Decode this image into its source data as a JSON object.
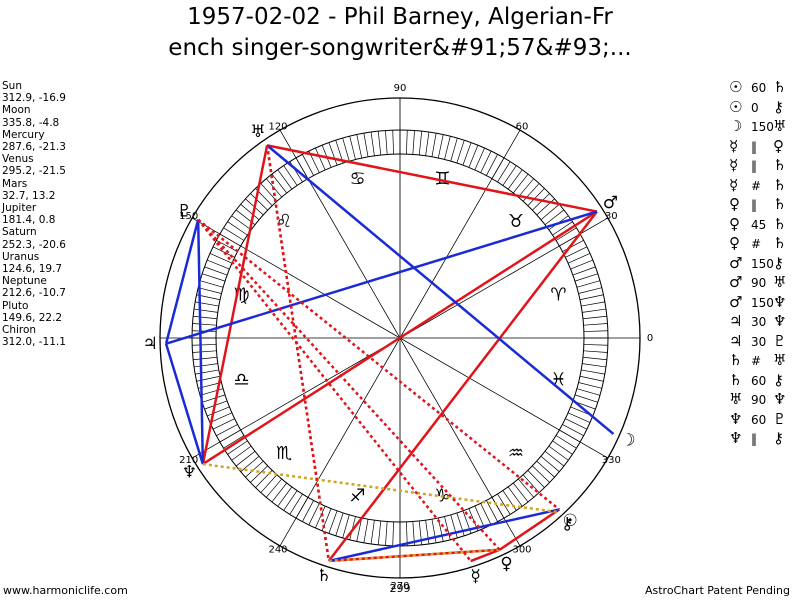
{
  "title": {
    "line1": "1957-02-02 - Phil Barney, Algerian-Fr",
    "line2": "ench singer-songwriter&#91;57&#93;..."
  },
  "planets": [
    {
      "name": "Sun",
      "coords": "312.9, -16.9"
    },
    {
      "name": "Moon",
      "coords": "335.8, -4.8"
    },
    {
      "name": "Mercury",
      "coords": "287.6, -21.3"
    },
    {
      "name": "Venus",
      "coords": "295.2, -21.5"
    },
    {
      "name": "Mars",
      "coords": "32.7, 13.2"
    },
    {
      "name": "Jupiter",
      "coords": "181.4, 0.8"
    },
    {
      "name": "Saturn",
      "coords": "252.3, -20.6"
    },
    {
      "name": "Uranus",
      "coords": "124.6, 19.7"
    },
    {
      "name": "Neptune",
      "coords": "212.6, -10.7"
    },
    {
      "name": "Pluto",
      "coords": "149.6, 22.2"
    },
    {
      "name": "Chiron",
      "coords": "312.0, -11.1"
    }
  ],
  "aspects": [
    {
      "p1": "☉",
      "asp": "60",
      "p2": "♄"
    },
    {
      "p1": "☉",
      "asp": "0",
      "p2": "⚷"
    },
    {
      "p1": "☽",
      "asp": "150",
      "p2": "♅"
    },
    {
      "p1": "☿",
      "asp": "‖",
      "p2": "♀"
    },
    {
      "p1": "☿",
      "asp": "‖",
      "p2": "♄"
    },
    {
      "p1": "☿",
      "asp": "#",
      "p2": "♄"
    },
    {
      "p1": "♀",
      "asp": "‖",
      "p2": "♄"
    },
    {
      "p1": "♀",
      "asp": "45",
      "p2": "♄"
    },
    {
      "p1": "♀",
      "asp": "#",
      "p2": "♄"
    },
    {
      "p1": "♂",
      "asp": "150",
      "p2": "⚷"
    },
    {
      "p1": "♂",
      "asp": "90",
      "p2": "♅"
    },
    {
      "p1": "♂",
      "asp": "150",
      "p2": "♆"
    },
    {
      "p1": "♃",
      "asp": "30",
      "p2": "♆"
    },
    {
      "p1": "♃",
      "asp": "30",
      "p2": "♇"
    },
    {
      "p1": "♄",
      "asp": "#",
      "p2": "♅"
    },
    {
      "p1": "♄",
      "asp": "60",
      "p2": "⚷"
    },
    {
      "p1": "♅",
      "asp": "90",
      "p2": "♆"
    },
    {
      "p1": "♆",
      "asp": "60",
      "p2": "♇"
    },
    {
      "p1": "♆",
      "asp": "‖",
      "p2": "⚷"
    }
  ],
  "wheel": {
    "degree_labels": [
      "0",
      "30",
      "60",
      "90",
      "120",
      "150",
      "210",
      "240",
      "270",
      "299",
      "300",
      "330"
    ],
    "signs": [
      {
        "glyph": "♈",
        "lon": 15
      },
      {
        "glyph": "♉",
        "lon": 45
      },
      {
        "glyph": "♊",
        "lon": 75
      },
      {
        "glyph": "♋",
        "lon": 105
      },
      {
        "glyph": "♌",
        "lon": 135
      },
      {
        "glyph": "♍",
        "lon": 165
      },
      {
        "glyph": "♎",
        "lon": 195
      },
      {
        "glyph": "♏",
        "lon": 225
      },
      {
        "glyph": "♐",
        "lon": 255
      },
      {
        "glyph": "♑",
        "lon": 285
      },
      {
        "glyph": "♒",
        "lon": 315
      },
      {
        "glyph": "♓",
        "lon": 345
      }
    ],
    "bodies": [
      {
        "glyph": "☉",
        "lon": 312.9
      },
      {
        "glyph": "☽",
        "lon": 335.8
      },
      {
        "glyph": "☿",
        "lon": 287.6
      },
      {
        "glyph": "♀",
        "lon": 295.2
      },
      {
        "glyph": "♂",
        "lon": 32.7
      },
      {
        "glyph": "♃",
        "lon": 181.4
      },
      {
        "glyph": "♄",
        "lon": 252.3
      },
      {
        "glyph": "♅",
        "lon": 124.6
      },
      {
        "glyph": "♆",
        "lon": 212.6
      },
      {
        "glyph": "♇",
        "lon": 149.6
      },
      {
        "glyph": "⚷",
        "lon": 312.0
      }
    ],
    "aspect_lines": [
      {
        "a": 32.7,
        "b": 252.3,
        "style": "red"
      },
      {
        "a": 32.7,
        "b": 124.6,
        "style": "red"
      },
      {
        "a": 32.7,
        "b": 212.6,
        "style": "red"
      },
      {
        "a": 124.6,
        "b": 212.6,
        "style": "red"
      },
      {
        "a": 295.2,
        "b": 312.9,
        "style": "red"
      },
      {
        "a": 295.2,
        "b": 252.3,
        "style": "red"
      },
      {
        "a": 287.6,
        "b": 295.2,
        "style": "red"
      },
      {
        "a": 32.7,
        "b": 181.4,
        "style": "blue"
      },
      {
        "a": 181.4,
        "b": 149.6,
        "style": "blue"
      },
      {
        "a": 181.4,
        "b": 212.6,
        "style": "blue"
      },
      {
        "a": 149.6,
        "b": 212.6,
        "style": "blue"
      },
      {
        "a": 124.6,
        "b": 335.8,
        "style": "blue"
      },
      {
        "a": 252.3,
        "b": 312.9,
        "style": "blue"
      },
      {
        "a": 212.6,
        "b": 312.0,
        "style": "gold-dotted"
      },
      {
        "a": 252.3,
        "b": 295.2,
        "style": "gold-dotted"
      },
      {
        "a": 124.6,
        "b": 252.3,
        "style": "red-dotted"
      },
      {
        "a": 149.6,
        "b": 287.6,
        "style": "red-dotted"
      },
      {
        "a": 149.6,
        "b": 295.2,
        "style": "red-dotted"
      },
      {
        "a": 149.6,
        "b": 312.9,
        "style": "red-dotted"
      },
      {
        "a": 124.6,
        "b": 252.3,
        "style": "red-dotted"
      }
    ],
    "colors": {
      "red": "#e0151b",
      "blue": "#1a2bd6",
      "gold": "#d4a420"
    }
  },
  "footer": {
    "left": "www.harmoniclife.com",
    "right": "AstroChart Patent Pending"
  }
}
